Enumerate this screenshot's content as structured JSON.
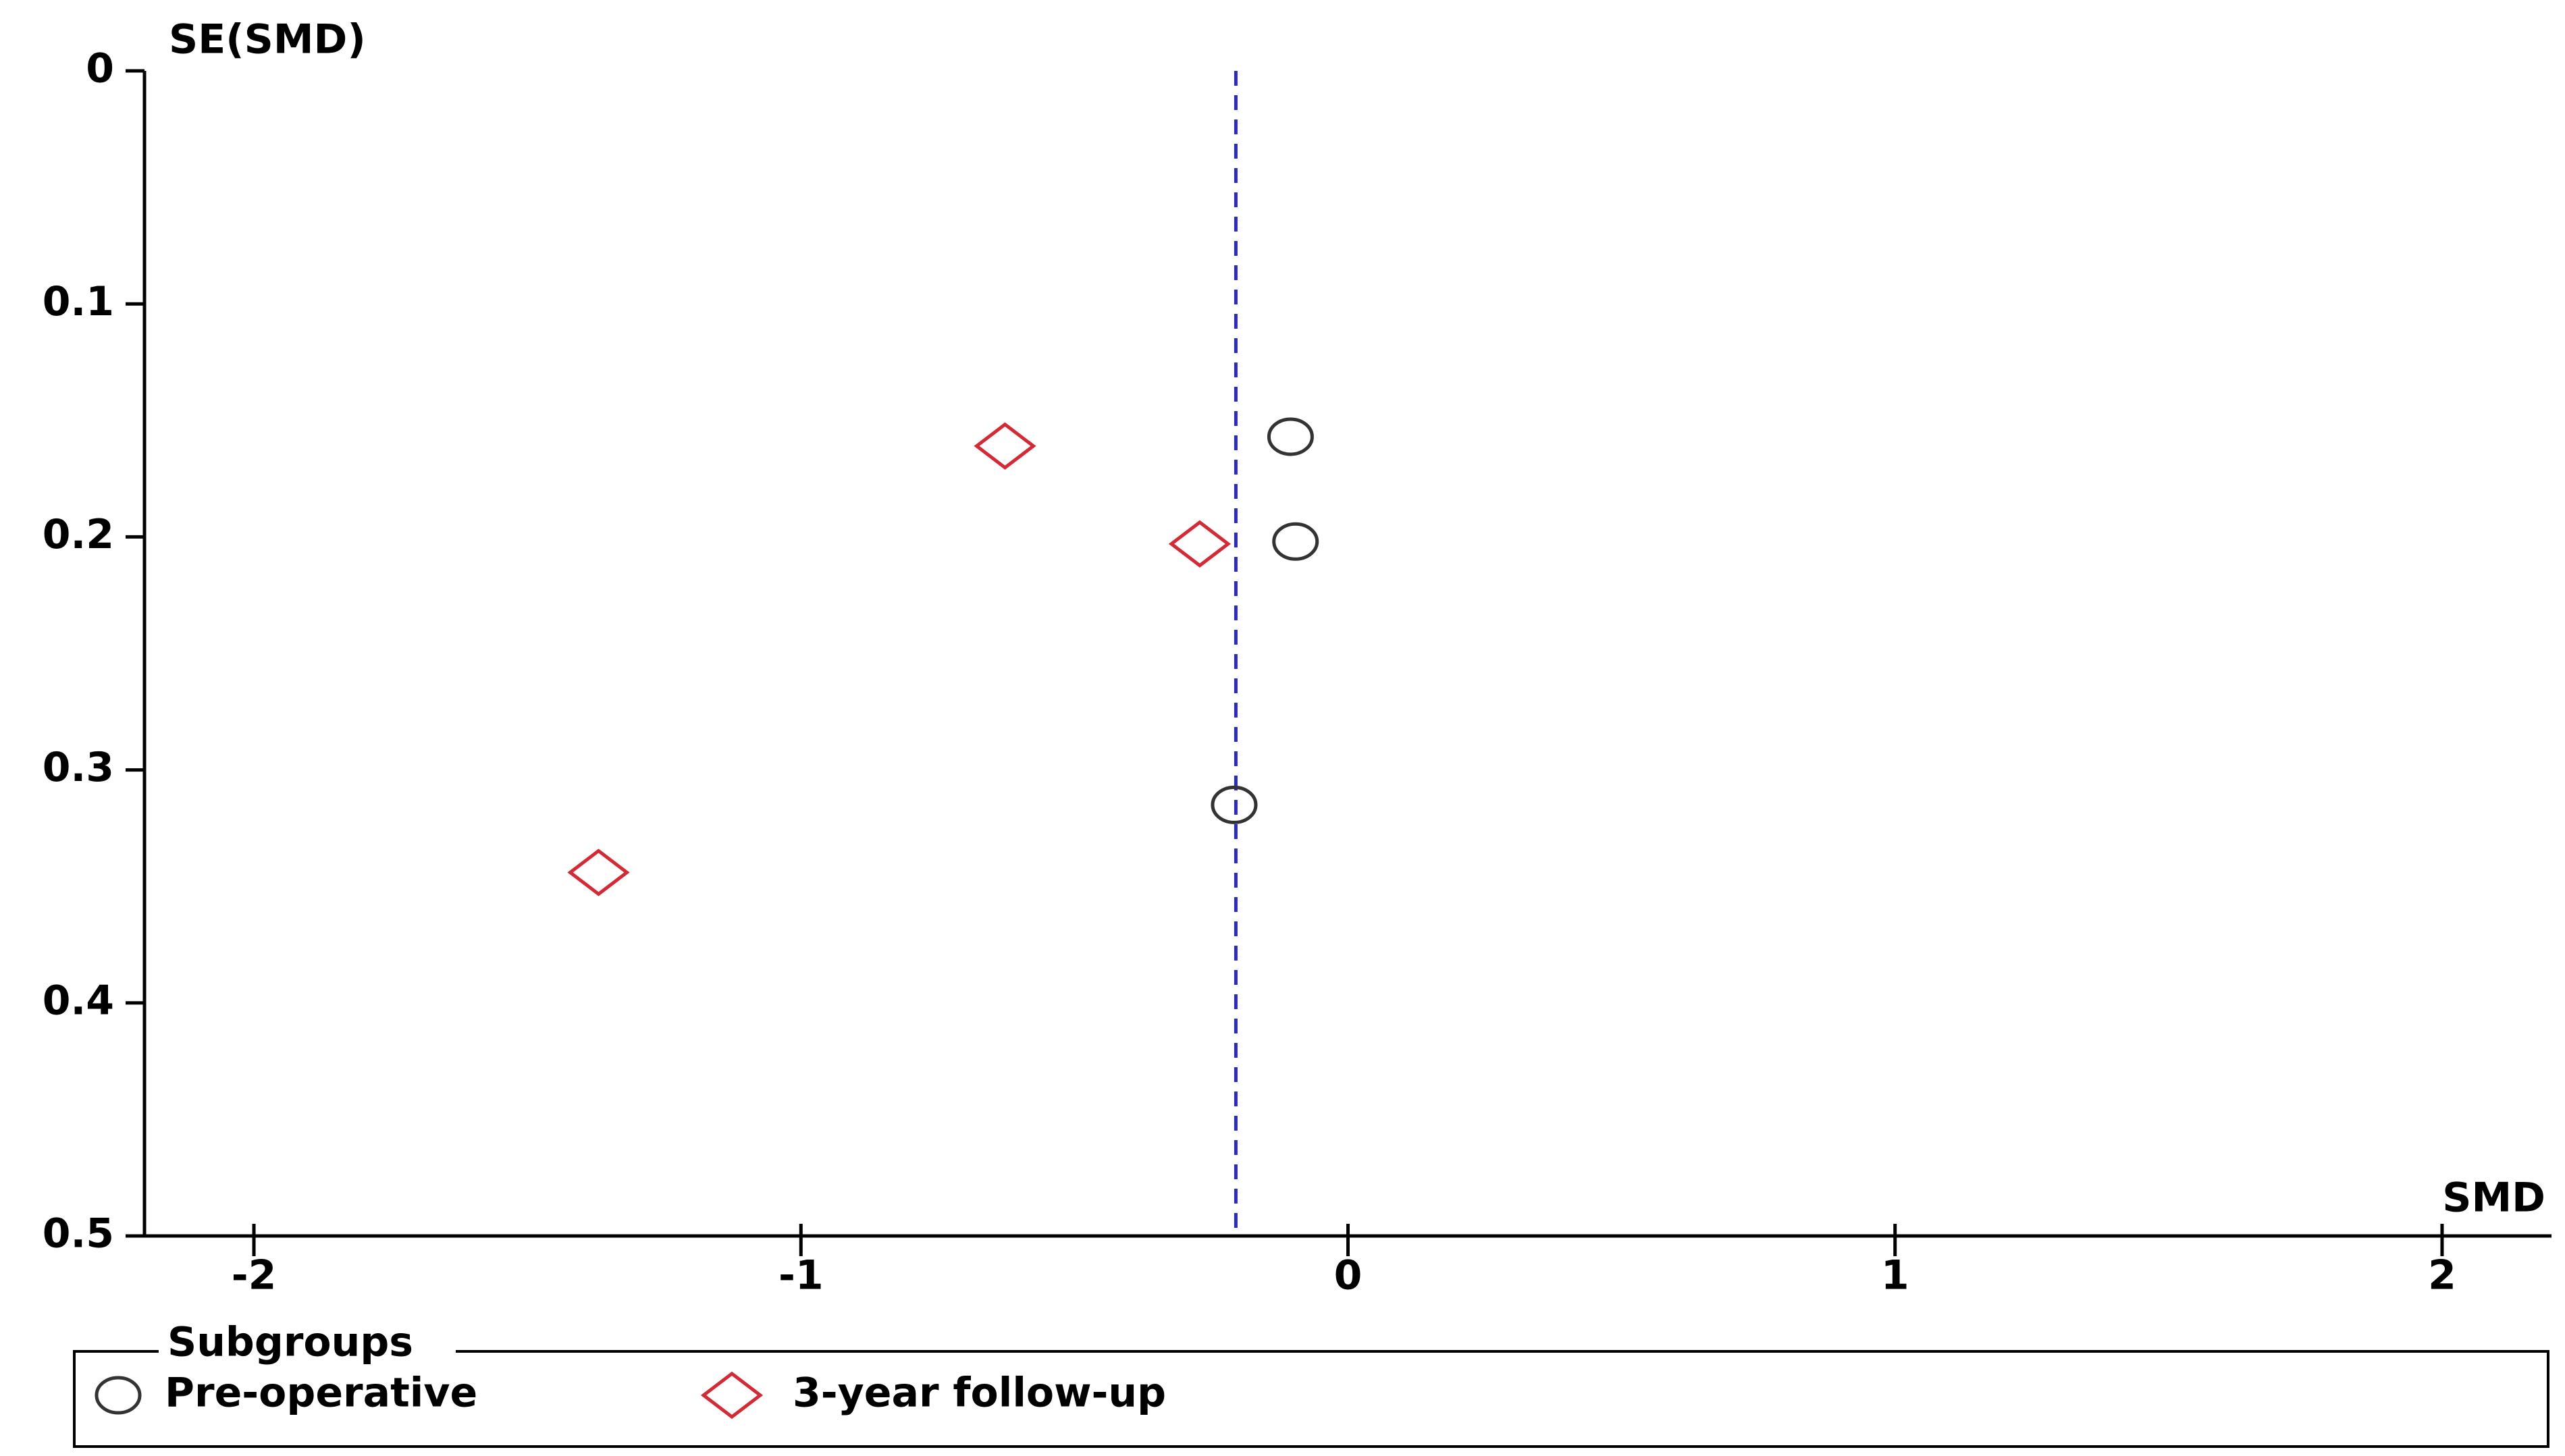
{
  "chart_data": {
    "type": "scatter",
    "x_label": "SMD",
    "y_label": "SE(SMD)",
    "xlim": [
      -2.2,
      2.2
    ],
    "xticks": [
      -2,
      -1,
      0,
      1,
      2
    ],
    "ylim": [
      0,
      0.5
    ],
    "yticks": [
      0,
      0.1,
      0.2,
      0.3,
      0.4,
      0.5
    ],
    "y_inverted": true,
    "vline": -0.205,
    "vline_color": "#2b2bb8",
    "legend_title": "Subgroups",
    "series": [
      {
        "name": "Pre-operative",
        "color": "#333333",
        "marker": "circle",
        "x": [
          -0.105,
          -0.096,
          -0.208
        ],
        "values": [
          0.157,
          0.202,
          0.315
        ]
      },
      {
        "name": "3-year follow-up",
        "color": "#d42a35",
        "marker": "diamond",
        "x": [
          -0.627,
          -0.271,
          -1.37
        ],
        "values": [
          0.161,
          0.203,
          0.344
        ]
      }
    ]
  }
}
